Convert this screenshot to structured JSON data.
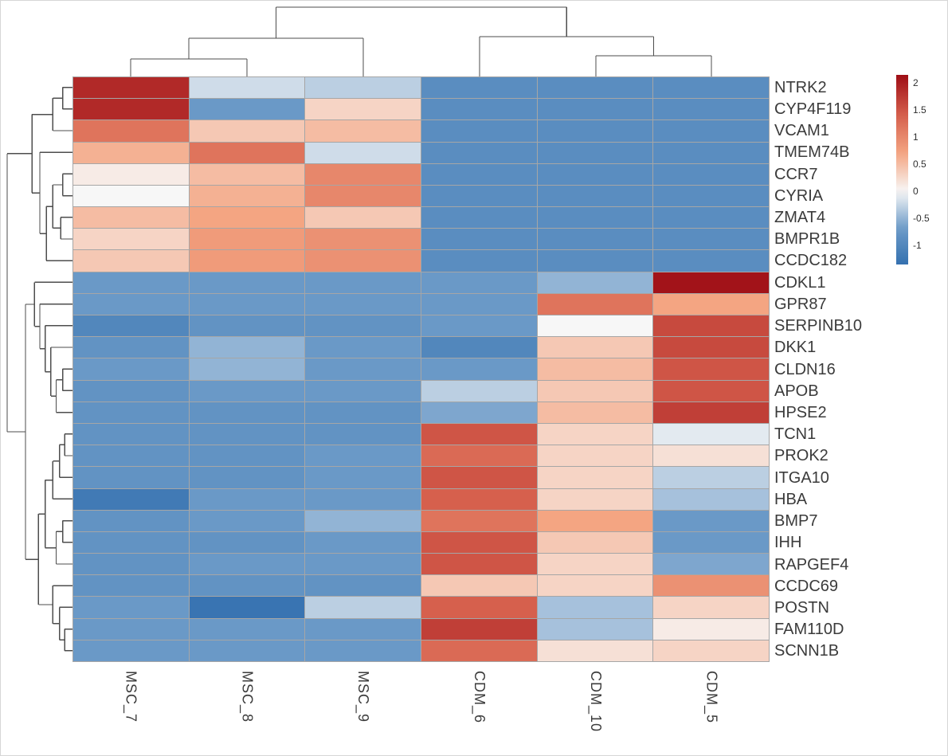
{
  "figure": {
    "background": "#ffffff",
    "border_color": "#d6d6d6"
  },
  "chart_data": {
    "type": "heatmap",
    "title": "",
    "columns": [
      "MSC_7",
      "MSC_8",
      "MSC_9",
      "CDM_6",
      "CDM_10",
      "CDM_5"
    ],
    "rows": [
      "NTRK2",
      "CYP4F119",
      "VCAM1",
      "TMEM74B",
      "CCR7",
      "CYRIA",
      "ZMAT4",
      "BMPR1B",
      "CCDC182",
      "CDKL1",
      "GPR87",
      "SERPINB10",
      "DKK1",
      "CLDN16",
      "APOB",
      "HPSE2",
      "TCN1",
      "PROK2",
      "ITGA10",
      "HBA",
      "BMP7",
      "IHH",
      "RAPGEF4",
      "CCDC69",
      "POSTN",
      "FAM110D",
      "SCNN1B"
    ],
    "values": [
      [
        1.9,
        -0.2,
        -0.3,
        -0.9,
        -0.9,
        -0.9
      ],
      [
        1.9,
        -0.7,
        0.3,
        -0.9,
        -0.9,
        -0.9
      ],
      [
        1.2,
        0.4,
        0.5,
        -0.9,
        -0.9,
        -0.9
      ],
      [
        0.6,
        1.2,
        -0.2,
        -0.9,
        -0.9,
        -0.9
      ],
      [
        0.1,
        0.5,
        1.0,
        -0.9,
        -0.9,
        -0.9
      ],
      [
        0.0,
        0.6,
        1.0,
        -0.9,
        -0.9,
        -0.9
      ],
      [
        0.5,
        0.7,
        0.4,
        -0.9,
        -0.9,
        -0.9
      ],
      [
        0.3,
        0.8,
        0.9,
        -0.9,
        -0.9,
        -0.9
      ],
      [
        0.4,
        0.8,
        0.9,
        -0.9,
        -0.9,
        -0.9
      ],
      [
        -0.7,
        -0.7,
        -0.7,
        -0.7,
        -0.5,
        2.1
      ],
      [
        -0.7,
        -0.7,
        -0.7,
        -0.7,
        1.2,
        0.7
      ],
      [
        -1.0,
        -0.8,
        -0.8,
        -0.7,
        0.0,
        1.6
      ],
      [
        -0.8,
        -0.5,
        -0.7,
        -1.0,
        0.4,
        1.6
      ],
      [
        -0.7,
        -0.5,
        -0.7,
        -0.7,
        0.5,
        1.5
      ],
      [
        -0.8,
        -0.7,
        -0.7,
        -0.3,
        0.4,
        1.5
      ],
      [
        -0.8,
        -0.8,
        -0.8,
        -0.6,
        0.5,
        1.7
      ],
      [
        -0.8,
        -0.8,
        -0.8,
        1.5,
        0.3,
        -0.1
      ],
      [
        -0.8,
        -0.8,
        -0.7,
        1.3,
        0.3,
        0.2
      ],
      [
        -0.8,
        -0.8,
        -0.7,
        1.5,
        0.3,
        -0.3
      ],
      [
        -1.2,
        -0.7,
        -0.7,
        1.4,
        0.3,
        -0.4
      ],
      [
        -0.8,
        -0.7,
        -0.5,
        1.2,
        0.7,
        -0.7
      ],
      [
        -0.8,
        -0.8,
        -0.7,
        1.5,
        0.4,
        -0.7
      ],
      [
        -0.8,
        -0.7,
        -0.7,
        1.5,
        0.3,
        -0.6
      ],
      [
        -0.8,
        -0.8,
        -0.8,
        0.4,
        0.3,
        0.9
      ],
      [
        -0.7,
        -1.3,
        -0.3,
        1.4,
        -0.4,
        0.3
      ],
      [
        -0.7,
        -0.7,
        -0.7,
        1.7,
        -0.4,
        0.1
      ],
      [
        -0.7,
        -0.7,
        -0.7,
        1.3,
        0.2,
        0.3
      ]
    ],
    "colorbar": {
      "ticks": [
        2,
        1.5,
        1,
        0.5,
        0,
        -0.5,
        -1
      ],
      "top_value": 2.15,
      "bottom_value": -1.35
    },
    "colormap": {
      "name": "RdBu_r",
      "anchors": [
        {
          "value": -1.4,
          "color": "#316EAE"
        },
        {
          "value": -0.7,
          "color": "#6A99C7"
        },
        {
          "value": 0.0,
          "color": "#F7F7F7"
        },
        {
          "value": 0.7,
          "color": "#F4A582"
        },
        {
          "value": 1.4,
          "color": "#D6604D"
        },
        {
          "value": 2.15,
          "color": "#9E0D15"
        }
      ]
    },
    "gridline_color": "#a6a6a6",
    "dendrograms": {
      "columns": true,
      "rows": true,
      "line_color": "#4d4d4d"
    },
    "legend_position": "top-right",
    "row_labels_position": "right",
    "column_labels_rotated": true
  }
}
